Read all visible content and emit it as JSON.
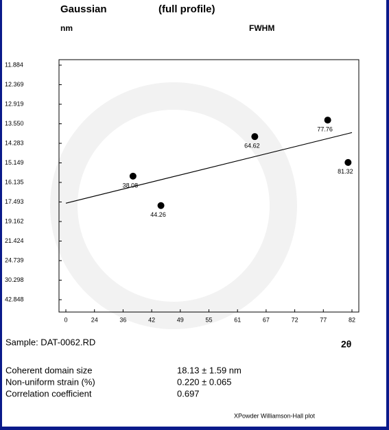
{
  "chart_data": {
    "type": "scatter",
    "title": "Gaussian",
    "subtitle": "(full profile)",
    "ylabel": "nm",
    "measure": "FWHM",
    "xlabel": "2θ",
    "sample": "Sample: DAT-0062.RD",
    "stats": [
      {
        "label": "Coherent domain size",
        "value": "18.13 ± 1.59 nm"
      },
      {
        "label": "Non-uniform strain (%)",
        "value": "0.220 ± 0.065"
      },
      {
        "label": "Correlation coefficient",
        "value": "0.697"
      }
    ],
    "footer": "XPowder Williamson-Hall plot",
    "x": [
      38.08,
      44.26,
      64.62,
      77.76,
      81.32
    ],
    "values": [
      15.82,
      17.8,
      14.03,
      13.43,
      15.13
    ],
    "color": "#000000",
    "fit_line": {
      "x": [
        0,
        82
      ],
      "y": [
        17.6,
        13.88
      ]
    },
    "xlim": [
      0,
      82
    ],
    "xticks": [
      0,
      24,
      36,
      42,
      49,
      55,
      61,
      67,
      72,
      77,
      82
    ],
    "ylim": [
      11.884,
      42.848
    ],
    "yticks": [
      11.884,
      12.369,
      12.919,
      {
        "value": 13.55,
        "label": "13.550"
      },
      14.283,
      15.149,
      16.135,
      17.493,
      19.162,
      21.424,
      24.739,
      30.298,
      42.848
    ]
  }
}
